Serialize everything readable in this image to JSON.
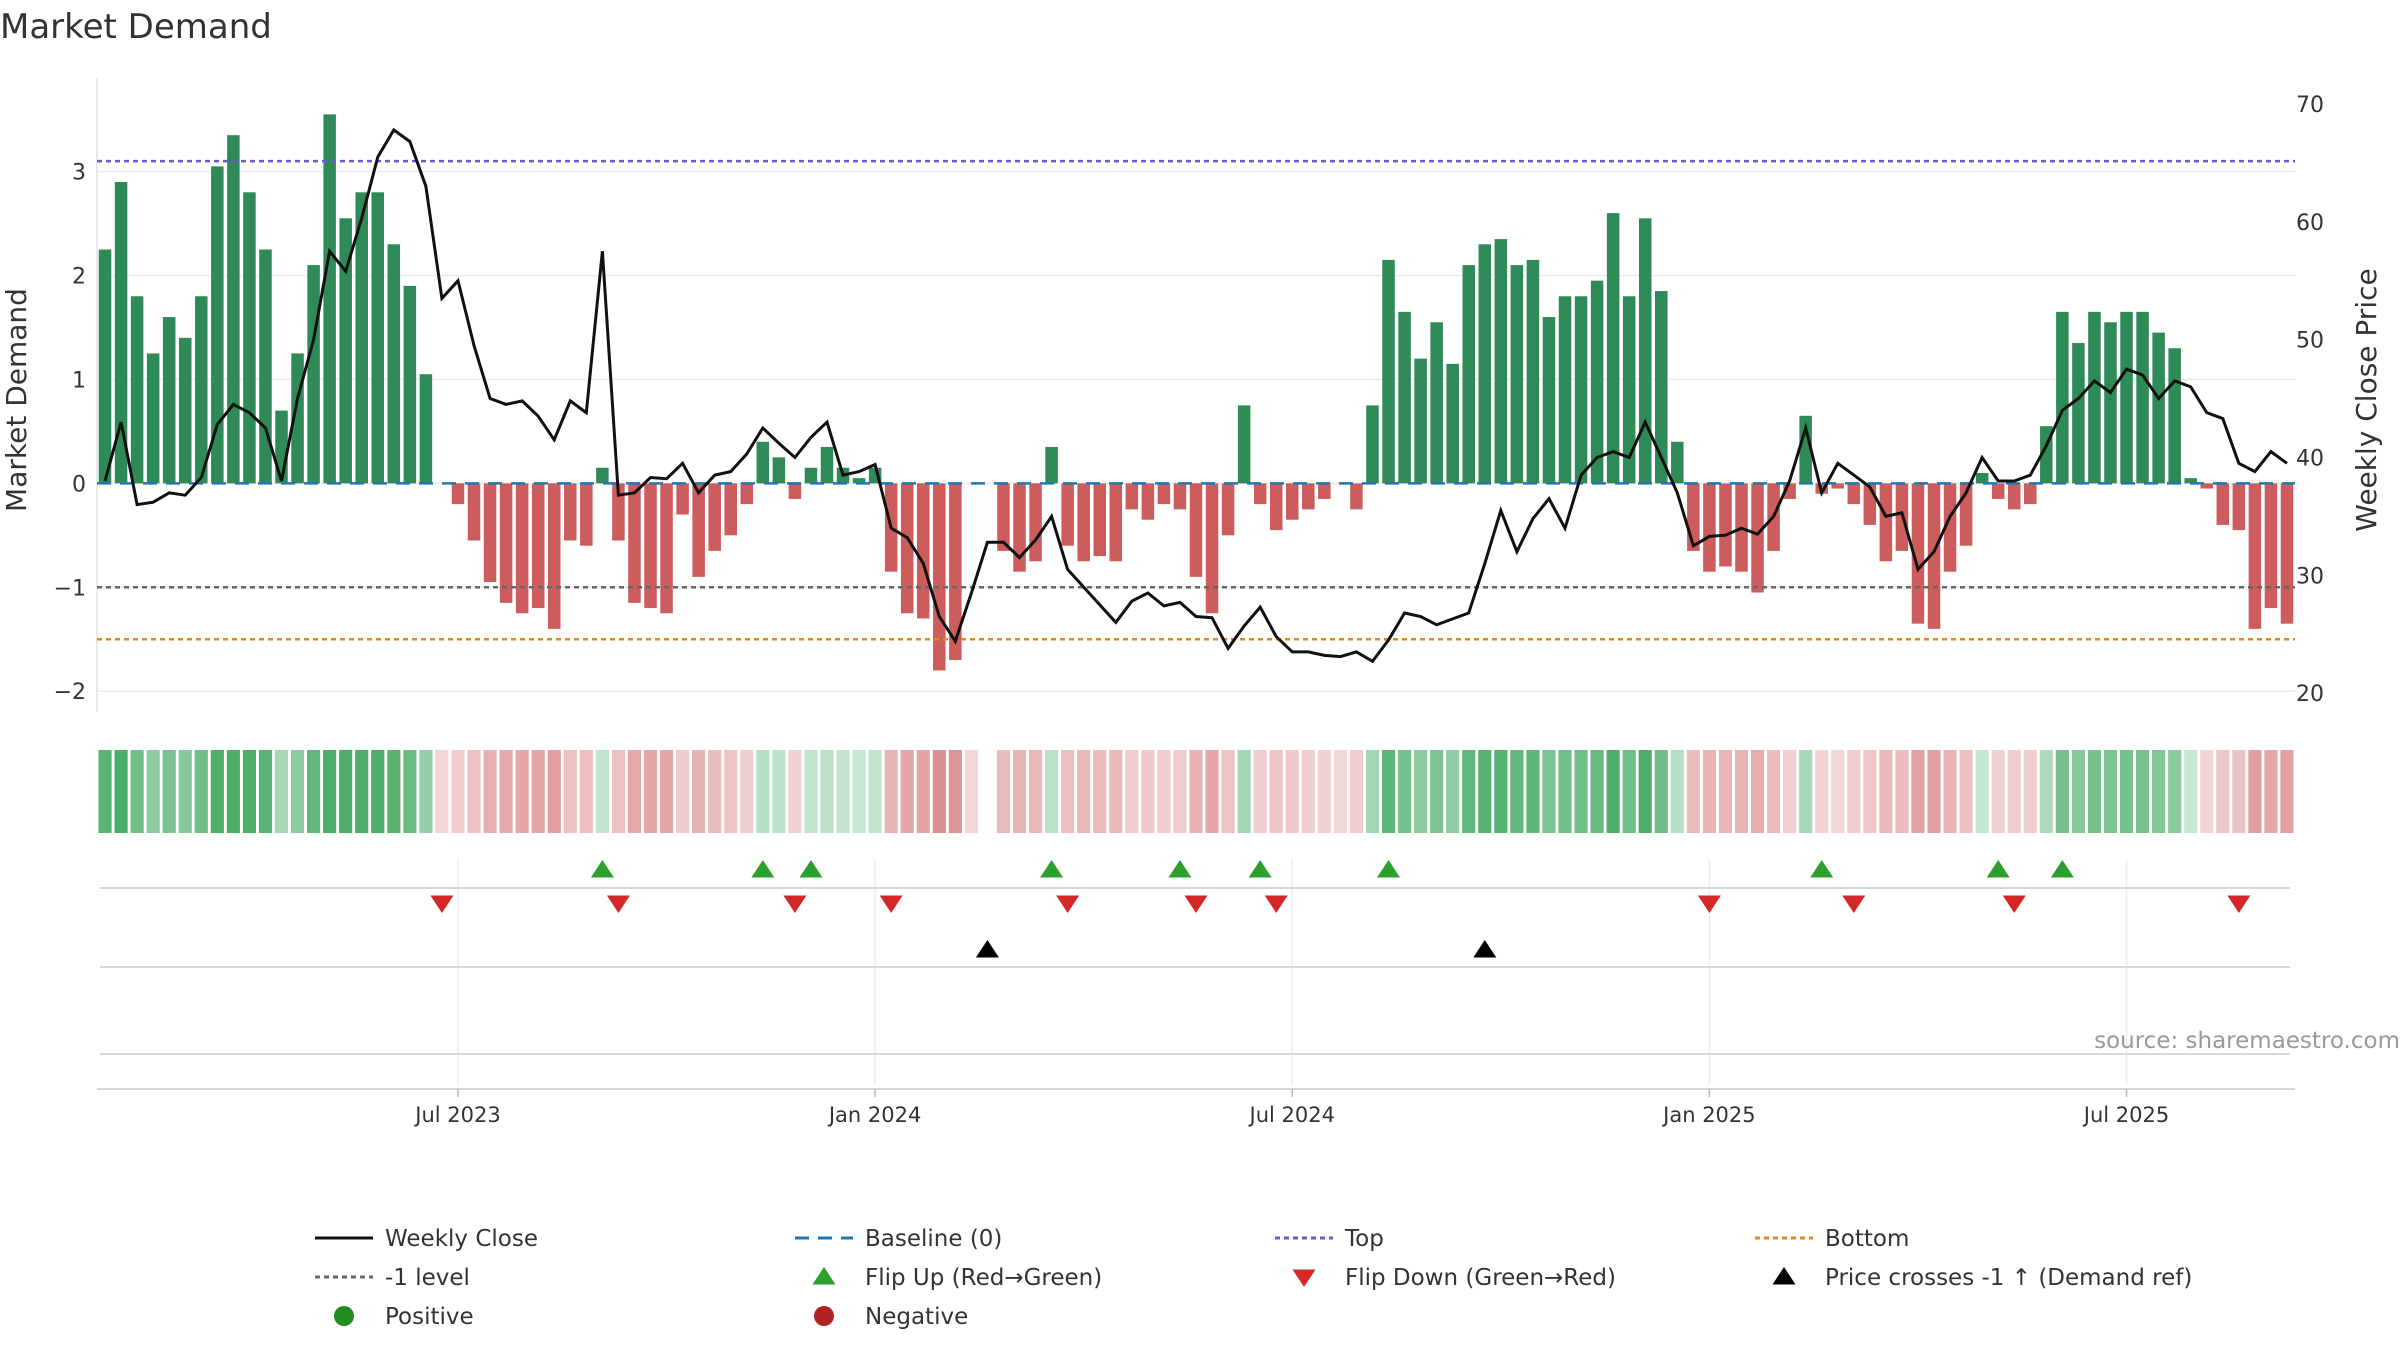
{
  "chart_data": {
    "type": "bar+line",
    "title": "Market Demand",
    "ylabel_left": "Market Demand",
    "ylabel_right": "Weekly Close Price",
    "ylim_left": [
      -2.2,
      3.9
    ],
    "ylim_right": [
      18.4,
      72.2
    ],
    "yticks_left": [
      {
        "v": 3,
        "label": "3"
      },
      {
        "v": 2,
        "label": "2"
      },
      {
        "v": 1,
        "label": "1"
      },
      {
        "v": 0,
        "label": "0"
      },
      {
        "v": -1,
        "label": "−1"
      },
      {
        "v": -2,
        "label": "−2"
      }
    ],
    "yticks_right": [
      {
        "v": 70,
        "label": "70"
      },
      {
        "v": 60,
        "label": "60"
      },
      {
        "v": 50,
        "label": "50"
      },
      {
        "v": 40,
        "label": "40"
      },
      {
        "v": 30,
        "label": "30"
      },
      {
        "v": 20,
        "label": "20"
      }
    ],
    "xticks": [
      {
        "week": 22,
        "label": "Jul 2023"
      },
      {
        "week": 48,
        "label": "Jan 2024"
      },
      {
        "week": 74,
        "label": "Jul 2024"
      },
      {
        "week": 100,
        "label": "Jan 2025"
      },
      {
        "week": 126,
        "label": "Jul 2025"
      }
    ],
    "reference_lines": {
      "baseline": 0,
      "top": 3.1,
      "minus_one": -1,
      "bottom": -1.5
    },
    "demand": [
      2.25,
      2.9,
      1.8,
      1.25,
      1.6,
      1.4,
      1.8,
      3.05,
      3.35,
      2.8,
      2.25,
      0.7,
      1.25,
      2.1,
      3.55,
      2.55,
      2.8,
      2.8,
      2.3,
      1.9,
      1.05,
      0,
      -0.2,
      -0.55,
      -0.95,
      -1.15,
      -1.25,
      -1.2,
      -1.4,
      -0.55,
      -0.6,
      0.15,
      -0.55,
      -1.15,
      -1.2,
      -1.25,
      -0.3,
      -0.9,
      -0.65,
      -0.5,
      -0.2,
      0.4,
      0.25,
      -0.15,
      0.15,
      0.35,
      0.15,
      0.05,
      0.15,
      -0.85,
      -1.25,
      -1.3,
      -1.8,
      -1.7,
      0,
      -0.65,
      -0.65,
      -0.85,
      -0.75,
      0.35,
      -0.6,
      -0.75,
      -0.7,
      -0.75,
      -0.25,
      -0.35,
      -0.2,
      -0.25,
      -0.9,
      -1.25,
      -0.5,
      0.75,
      -0.2,
      -0.45,
      -0.35,
      -0.25,
      -0.15,
      0,
      -0.25,
      0.75,
      2.15,
      1.65,
      1.2,
      1.55,
      1.15,
      2.1,
      2.3,
      2.35,
      2.1,
      2.15,
      1.6,
      1.8,
      1.8,
      1.95,
      2.6,
      1.8,
      2.55,
      1.85,
      0.4,
      -0.65,
      -0.85,
      -0.8,
      -0.85,
      -1.05,
      -0.65,
      -0.15,
      0.65,
      -0.1,
      -0.05,
      -0.2,
      -0.4,
      -0.75,
      -0.65,
      -1.35,
      -1.4,
      -0.85,
      -0.6,
      0.1,
      -0.15,
      -0.25,
      -0.2,
      0.55,
      1.65,
      1.35,
      1.65,
      1.55,
      1.65,
      1.65,
      1.45,
      1.3,
      0.05,
      -0.05,
      -0.4,
      -0.45,
      -1.4,
      -1.2,
      -1.35
    ],
    "weekly_close": [
      38,
      43,
      36,
      36.2,
      37,
      36.8,
      38.3,
      42.8,
      44.5,
      43.8,
      42.5,
      38,
      45,
      50,
      57.5,
      55.8,
      60.3,
      65.5,
      67.8,
      66.8,
      63,
      53.5,
      55,
      49.5,
      45,
      44.5,
      44.8,
      43.5,
      41.5,
      44.8,
      43.8,
      57.5,
      36.8,
      37,
      38.3,
      38.2,
      39.5,
      37,
      38.5,
      38.8,
      40.3,
      42.5,
      41.2,
      40,
      41.7,
      43,
      38.5,
      38.8,
      39.4,
      34,
      33.2,
      31,
      26.5,
      24.4,
      28.5,
      32.8,
      32.8,
      31.5,
      33,
      35,
      30.5,
      29,
      27.5,
      26,
      27.8,
      28.5,
      27.4,
      27.7,
      26.5,
      26.4,
      23.8,
      25.7,
      27.3,
      24.8,
      23.5,
      23.5,
      23.2,
      23.1,
      23.5,
      22.7,
      24.5,
      26.8,
      26.5,
      25.8,
      26.3,
      26.8,
      31,
      35.5,
      32,
      34.8,
      36.5,
      34,
      38.5,
      40,
      40.5,
      40,
      43,
      40,
      37,
      32.5,
      33.3,
      33.4,
      34,
      33.5,
      35,
      38,
      42.5,
      37,
      39.5,
      38.5,
      37.5,
      35,
      35.3,
      30.5,
      32,
      35,
      37,
      40,
      38,
      38,
      38.5,
      41,
      44,
      45,
      46.5,
      45.5,
      47.5,
      47,
      45,
      46.5,
      46,
      43.8,
      43.3,
      39.5,
      38.8,
      40.5,
      39.5
    ],
    "gap_index": 55,
    "flip_up_weeks": [
      31,
      41,
      44,
      59,
      67,
      72,
      80,
      107,
      118,
      122
    ],
    "flip_down_weeks": [
      21,
      32,
      43,
      49,
      60,
      68,
      73,
      100,
      109,
      119,
      133
    ],
    "price_cross_weeks": [
      55,
      86
    ],
    "legend": [
      {
        "label": "Weekly Close",
        "marker": "line-solid-black"
      },
      {
        "label": "Baseline (0)",
        "marker": "line-dashed-blue"
      },
      {
        "label": "Top",
        "marker": "line-dotted-purple"
      },
      {
        "label": "Bottom",
        "marker": "line-dotted-orange"
      },
      {
        "label": "-1 level",
        "marker": "line-dotted-gray"
      },
      {
        "label": "Flip Up (Red→Green)",
        "marker": "triangle-up-green"
      },
      {
        "label": "Flip Down (Green→Red)",
        "marker": "triangle-down-red"
      },
      {
        "label": "Price crosses -1 ↑ (Demand ref)",
        "marker": "triangle-up-black"
      },
      {
        "label": "Positive",
        "marker": "circle-green"
      },
      {
        "label": "Negative",
        "marker": "circle-red"
      }
    ],
    "source": "source: sharemaestro.com"
  },
  "colors": {
    "positive_bar": "#2e8b57",
    "negative_bar": "#cd5c5c",
    "close_line": "#111111",
    "baseline": "#1f77b4",
    "top": "#6a5acd",
    "minus_one": "#666666",
    "bottom": "#e08a1e",
    "flip_up": "#2ca02c",
    "flip_down": "#d62728",
    "price_cross": "#000000",
    "positive_dot": "#228b22",
    "negative_dot": "#b22222"
  }
}
